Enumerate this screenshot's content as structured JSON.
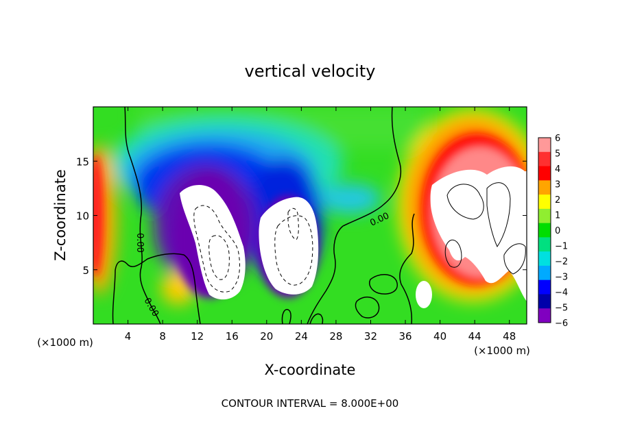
{
  "chart_data": {
    "type": "heatmap",
    "title": "vertical velocity",
    "xlabel": "X-coordinate",
    "ylabel": "Z-coordinate",
    "x_unit_left": "(×1000 m)",
    "x_unit_right": "(×1000 m)",
    "footer": "CONTOUR INTERVAL = 8.000E+00",
    "xlim": [
      0,
      50
    ],
    "ylim": [
      0,
      20
    ],
    "x_ticks": [
      4,
      8,
      12,
      16,
      20,
      24,
      28,
      32,
      36,
      40,
      44,
      48
    ],
    "y_ticks": [
      5,
      10,
      15
    ],
    "colorbar": {
      "levels": [
        6,
        5,
        4,
        3,
        2,
        1,
        0,
        -1,
        -2,
        -3,
        -4,
        -5,
        -6
      ],
      "labels": [
        "6",
        "5",
        "4",
        "3",
        "2",
        "1",
        "0",
        "−1",
        "−2",
        "−3",
        "−4",
        "−5",
        "−6"
      ],
      "colors": [
        "#ff9999",
        "#ff3030",
        "#ff0000",
        "#ffa500",
        "#ffff00",
        "#90ee30",
        "#00dd00",
        "#00e080",
        "#00e0e0",
        "#00aaff",
        "#0000ff",
        "#0000aa",
        "#8000c0"
      ]
    },
    "contour_labels": [
      "0.00",
      "0.00",
      "0.00"
    ],
    "features": [
      {
        "name": "updraft-left",
        "x": 1.0,
        "z": 9.0,
        "value": 5
      },
      {
        "name": "downdraft-core-1",
        "x": 14.5,
        "z": 8.0,
        "value": -8
      },
      {
        "name": "downdraft-core-2",
        "x": 21.5,
        "z": 7.0,
        "value": -8
      },
      {
        "name": "updraft-right",
        "x": 45.0,
        "z": 9.0,
        "value": 8
      }
    ]
  }
}
